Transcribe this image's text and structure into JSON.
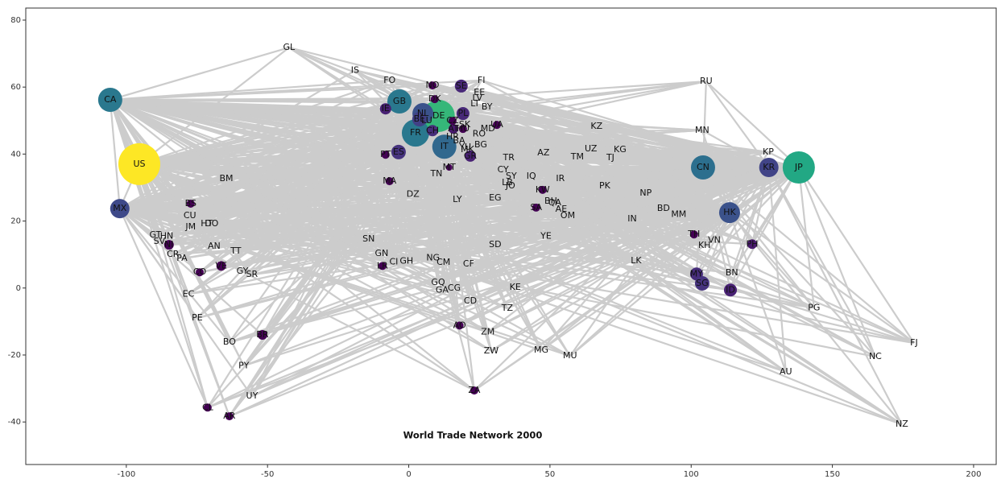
{
  "chart_data": {
    "type": "network",
    "title": "World Trade Network 2000",
    "xlim": [
      -135.6,
      208
    ],
    "ylim": [
      -52.7,
      83.6
    ],
    "xticks": [
      -100,
      -50,
      0,
      50,
      100,
      150,
      200
    ],
    "yticks": [
      -40,
      -20,
      0,
      20,
      40,
      60,
      80
    ],
    "edge_color": "#cccccc",
    "nodes": [
      {
        "label": "US",
        "x": -95.4,
        "y": 37,
        "size": 26,
        "color": "#fde725"
      },
      {
        "label": "JP",
        "x": 138.1,
        "y": 36,
        "size": 20,
        "color": "#22a884"
      },
      {
        "label": "DE",
        "x": 10.6,
        "y": 51.4,
        "size": 20,
        "color": "#35b779"
      },
      {
        "label": "CA",
        "x": -105.7,
        "y": 56.2,
        "size": 15,
        "color": "#2a788e"
      },
      {
        "label": "GB",
        "x": -3.3,
        "y": 55.7,
        "size": 15,
        "color": "#2a788e"
      },
      {
        "label": "FR",
        "x": 2.4,
        "y": 46.3,
        "size": 17,
        "color": "#2a788e"
      },
      {
        "label": "IT",
        "x": 12.6,
        "y": 42.2,
        "size": 15,
        "color": "#31688e"
      },
      {
        "label": "CN",
        "x": 104.2,
        "y": 36,
        "size": 15,
        "color": "#2c6f8e"
      },
      {
        "label": "NL",
        "x": 5,
        "y": 52.1,
        "size": 13,
        "color": "#3b528b"
      },
      {
        "label": "HK",
        "x": 113.6,
        "y": 22.5,
        "size": 13,
        "color": "#3b528b"
      },
      {
        "label": "MX",
        "x": -102.3,
        "y": 23.7,
        "size": 12,
        "color": "#3e4989"
      },
      {
        "label": "KR",
        "x": 127.5,
        "y": 36,
        "size": 12,
        "color": "#414487"
      },
      {
        "label": "BE",
        "x": 3.8,
        "y": 50.4,
        "size": 9,
        "color": "#424086"
      },
      {
        "label": "ES",
        "x": -3.6,
        "y": 40.6,
        "size": 9,
        "color": "#46337e"
      },
      {
        "label": "MY",
        "x": 101.9,
        "y": 4.2,
        "size": 8,
        "color": "#472d7b"
      },
      {
        "label": "SG",
        "x": 103.9,
        "y": 1.4,
        "size": 9,
        "color": "#46337e"
      },
      {
        "label": "SE",
        "x": 18.6,
        "y": 60.3,
        "size": 8,
        "color": "#482878"
      },
      {
        "label": "PL",
        "x": 19.2,
        "y": 52.1,
        "size": 8,
        "color": "#482878"
      },
      {
        "label": "CH",
        "x": 8.4,
        "y": 47,
        "size": 7,
        "color": "#472d7b"
      },
      {
        "label": "ID",
        "x": 113.9,
        "y": -0.6,
        "size": 8,
        "color": "#482173"
      },
      {
        "label": "IE",
        "x": -8.2,
        "y": 53.5,
        "size": 7,
        "color": "#482173"
      },
      {
        "label": "AT",
        "x": 15.8,
        "y": 47.5,
        "size": 6,
        "color": "#481a6c"
      },
      {
        "label": "PH",
        "x": 121.6,
        "y": 13.1,
        "size": 6,
        "color": "#481a6c"
      },
      {
        "label": "TH",
        "x": 101,
        "y": 16,
        "size": 5,
        "color": "#440154"
      },
      {
        "label": "GR",
        "x": 21.8,
        "y": 39.4,
        "size": 7,
        "color": "#482173"
      },
      {
        "label": "BR",
        "x": -51.8,
        "y": -14,
        "size": 6,
        "color": "#440154"
      },
      {
        "label": "ZA",
        "x": 23.2,
        "y": -30.6,
        "size": 5,
        "color": "#440154"
      },
      {
        "label": "CZ",
        "x": 15.5,
        "y": 49.9,
        "size": 5,
        "color": "#440154"
      },
      {
        "label": "HU",
        "x": 19.2,
        "y": 47.5,
        "size": 5,
        "color": "#440154"
      },
      {
        "label": "NO",
        "x": 8.4,
        "y": 60.5,
        "size": 5,
        "color": "#440154"
      },
      {
        "label": "DK",
        "x": 9.2,
        "y": 56.4,
        "size": 5,
        "color": "#440154"
      },
      {
        "label": "PT",
        "x": -8.2,
        "y": 39.8,
        "size": 5,
        "color": "#440154"
      },
      {
        "label": "NI",
        "x": -84.9,
        "y": 12.9,
        "size": 6,
        "color": "#440154"
      },
      {
        "label": "VE",
        "x": -66.4,
        "y": 6.6,
        "size": 6,
        "color": "#440154"
      },
      {
        "label": "CO",
        "x": -74,
        "y": 4.7,
        "size": 5,
        "color": "#440154"
      },
      {
        "label": "CL",
        "x": -71.2,
        "y": -35.7,
        "size": 5,
        "color": "#440154"
      },
      {
        "label": "AR",
        "x": -63.5,
        "y": -38.3,
        "size": 5,
        "color": "#440154"
      },
      {
        "label": "AO",
        "x": 18,
        "y": -11.2,
        "size": 5,
        "color": "#440154"
      },
      {
        "label": "LR",
        "x": -9.3,
        "y": 6.6,
        "size": 5,
        "color": "#440154"
      },
      {
        "label": "BS",
        "x": -77.2,
        "y": 25.2,
        "size": 5,
        "color": "#440154"
      },
      {
        "label": "MT",
        "x": 14.3,
        "y": 36,
        "size": 4,
        "color": "#440154"
      },
      {
        "label": "MA",
        "x": -6.8,
        "y": 31.9,
        "size": 5,
        "color": "#440154"
      },
      {
        "label": "SA",
        "x": 45.1,
        "y": 24,
        "size": 5,
        "color": "#440154"
      },
      {
        "label": "KW",
        "x": 47.4,
        "y": 29.3,
        "size": 5,
        "color": "#440154"
      },
      {
        "label": "UA",
        "x": 31.2,
        "y": 48.7,
        "size": 5,
        "color": "#440154"
      },
      {
        "label": "GL",
        "x": -42.4,
        "y": 71.8
      },
      {
        "label": "IS",
        "x": -19,
        "y": 65
      },
      {
        "label": "FO",
        "x": -6.8,
        "y": 62
      },
      {
        "label": "FI",
        "x": 25.7,
        "y": 62
      },
      {
        "label": "EE",
        "x": 25,
        "y": 58.4
      },
      {
        "label": "LV",
        "x": 24.3,
        "y": 56.7
      },
      {
        "label": "LT",
        "x": 23.5,
        "y": 55
      },
      {
        "label": "BY",
        "x": 27.7,
        "y": 54
      },
      {
        "label": "LU",
        "x": 6.4,
        "y": 49.9
      },
      {
        "label": "SK",
        "x": 19.8,
        "y": 48.7
      },
      {
        "label": "MD",
        "x": 28,
        "y": 47.5
      },
      {
        "label": "RO",
        "x": 24.9,
        "y": 46
      },
      {
        "label": "HR",
        "x": 15.5,
        "y": 45.1
      },
      {
        "label": "BA",
        "x": 17.8,
        "y": 43.9
      },
      {
        "label": "YU",
        "x": 20,
        "y": 42
      },
      {
        "label": "MK",
        "x": 20.8,
        "y": 41.3
      },
      {
        "label": "BG",
        "x": 25.5,
        "y": 42.7
      },
      {
        "label": "TR",
        "x": 35.4,
        "y": 38.9
      },
      {
        "label": "AZ",
        "x": 47.7,
        "y": 40.3
      },
      {
        "label": "TM",
        "x": 59.7,
        "y": 39.1
      },
      {
        "label": "UZ",
        "x": 64.5,
        "y": 41.5
      },
      {
        "label": "KG",
        "x": 74.8,
        "y": 41.3
      },
      {
        "label": "TJ",
        "x": 71.4,
        "y": 38.9
      },
      {
        "label": "KZ",
        "x": 66.5,
        "y": 48.3
      },
      {
        "label": "MN",
        "x": 103.9,
        "y": 47.1
      },
      {
        "label": "RU",
        "x": 105.3,
        "y": 61.7
      },
      {
        "label": "KP",
        "x": 127.3,
        "y": 40.6
      },
      {
        "label": "TN",
        "x": 9.8,
        "y": 34.1
      },
      {
        "label": "DZ",
        "x": 1.5,
        "y": 28
      },
      {
        "label": "LY",
        "x": 17.2,
        "y": 26.4
      },
      {
        "label": "EG",
        "x": 30.6,
        "y": 26.9
      },
      {
        "label": "CY",
        "x": 33.4,
        "y": 35.3
      },
      {
        "label": "SY",
        "x": 36.3,
        "y": 33.3
      },
      {
        "label": "LB",
        "x": 34.9,
        "y": 31.4
      },
      {
        "label": "JO",
        "x": 36,
        "y": 30.5
      },
      {
        "label": "IQ",
        "x": 43.4,
        "y": 33.3
      },
      {
        "label": "IR",
        "x": 53.7,
        "y": 32.6
      },
      {
        "label": "BH",
        "x": 50.3,
        "y": 25.9
      },
      {
        "label": "QA",
        "x": 51.7,
        "y": 25.4
      },
      {
        "label": "AE",
        "x": 54,
        "y": 23.5
      },
      {
        "label": "OM",
        "x": 56.3,
        "y": 21.6
      },
      {
        "label": "PK",
        "x": 69.4,
        "y": 30.5
      },
      {
        "label": "NP",
        "x": 83.9,
        "y": 28.3
      },
      {
        "label": "BD",
        "x": 90.2,
        "y": 23.7
      },
      {
        "label": "MM",
        "x": 95.6,
        "y": 22
      },
      {
        "label": "IN",
        "x": 79.1,
        "y": 20.6
      },
      {
        "label": "VN",
        "x": 108.2,
        "y": 14.3
      },
      {
        "label": "KH",
        "x": 104.7,
        "y": 12.7
      },
      {
        "label": "LK",
        "x": 80.5,
        "y": 8.1
      },
      {
        "label": "BN",
        "x": 114.4,
        "y": 4.5
      },
      {
        "label": "PG",
        "x": 143.5,
        "y": -5.9
      },
      {
        "label": "AU",
        "x": 133.5,
        "y": -25
      },
      {
        "label": "NC",
        "x": 165.2,
        "y": -20.5
      },
      {
        "label": "FJ",
        "x": 178.9,
        "y": -16.4
      },
      {
        "label": "NZ",
        "x": 174.6,
        "y": -40.7
      },
      {
        "label": "BM",
        "x": -64.6,
        "y": 32.6
      },
      {
        "label": "CU",
        "x": -77.5,
        "y": 21.6
      },
      {
        "label": "HT",
        "x": -71.5,
        "y": 19.2
      },
      {
        "label": "DO",
        "x": -69.8,
        "y": 19.2
      },
      {
        "label": "JM",
        "x": -77.2,
        "y": 18.2
      },
      {
        "label": "GT",
        "x": -89.7,
        "y": 15.8
      },
      {
        "label": "HN",
        "x": -85.7,
        "y": 15.5
      },
      {
        "label": "SV",
        "x": -88.3,
        "y": 13.9
      },
      {
        "label": "CR",
        "x": -83.5,
        "y": 10
      },
      {
        "label": "PA",
        "x": -80.3,
        "y": 8.8
      },
      {
        "label": "AN",
        "x": -68.9,
        "y": 12.4
      },
      {
        "label": "TT",
        "x": -61.2,
        "y": 11
      },
      {
        "label": "GY",
        "x": -58.9,
        "y": 5
      },
      {
        "label": "SR",
        "x": -55.5,
        "y": 4
      },
      {
        "label": "EC",
        "x": -78,
        "y": -1.8
      },
      {
        "label": "PE",
        "x": -74.9,
        "y": -9
      },
      {
        "label": "BO",
        "x": -63.5,
        "y": -16.2
      },
      {
        "label": "PY",
        "x": -58.4,
        "y": -23.2
      },
      {
        "label": "UY",
        "x": -55.5,
        "y": -32.3
      },
      {
        "label": "SN",
        "x": -14.2,
        "y": 14.6
      },
      {
        "label": "GN",
        "x": -9.6,
        "y": 10.3
      },
      {
        "label": "CI",
        "x": -5.3,
        "y": 7.8
      },
      {
        "label": "GH",
        "x": -0.8,
        "y": 8
      },
      {
        "label": "NG",
        "x": 8.6,
        "y": 9
      },
      {
        "label": "CM",
        "x": 12.3,
        "y": 7.6
      },
      {
        "label": "CF",
        "x": 21.2,
        "y": 7.1
      },
      {
        "label": "SD",
        "x": 30.6,
        "y": 12.9
      },
      {
        "label": "YE",
        "x": 48.6,
        "y": 15.5
      },
      {
        "label": "KE",
        "x": 37.7,
        "y": 0.2
      },
      {
        "label": "TZ",
        "x": 34.9,
        "y": -6.1
      },
      {
        "label": "GQ",
        "x": 10.4,
        "y": 1.6
      },
      {
        "label": "GA",
        "x": 11.8,
        "y": -0.6
      },
      {
        "label": "CG",
        "x": 16.1,
        "y": -0.1
      },
      {
        "label": "CD",
        "x": 21.8,
        "y": -3.9
      },
      {
        "label": "ZM",
        "x": 28,
        "y": -13.1
      },
      {
        "label": "ZW",
        "x": 29.2,
        "y": -18.8
      },
      {
        "label": "MG",
        "x": 46.9,
        "y": -18.6
      },
      {
        "label": "MU",
        "x": 57.1,
        "y": -20.3
      }
    ]
  }
}
